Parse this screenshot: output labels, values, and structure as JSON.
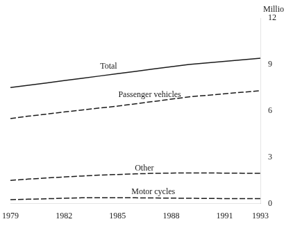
{
  "chart_data": {
    "type": "line",
    "ylabel": "Million",
    "x": [
      1979,
      1980,
      1981,
      1982,
      1983,
      1984,
      1985,
      1986,
      1987,
      1988,
      1989,
      1990,
      1991,
      1992,
      1993
    ],
    "series": [
      {
        "color": "#1a1a1a",
        "line_style": "solid",
        "values": [
          7.5,
          7.65,
          7.8,
          7.95,
          8.1,
          8.25,
          8.4,
          8.55,
          8.7,
          8.85,
          9.0,
          9.1,
          9.2,
          9.3,
          9.4
        ]
      },
      {
        "color": "#1a1a1a",
        "line_style": "dashed",
        "values": [
          5.5,
          5.65,
          5.78,
          5.92,
          6.05,
          6.18,
          6.3,
          6.45,
          6.6,
          6.75,
          6.9,
          7.0,
          7.1,
          7.2,
          7.3
        ]
      },
      {
        "color": "#1a1a1a",
        "line_style": "dashed",
        "values": [
          1.5,
          1.58,
          1.65,
          1.72,
          1.78,
          1.84,
          1.88,
          1.92,
          1.95,
          1.97,
          1.98,
          1.98,
          1.97,
          1.96,
          1.95
        ]
      },
      {
        "color": "#1a1a1a",
        "line_style": "dashed",
        "values": [
          0.25,
          0.28,
          0.31,
          0.34,
          0.37,
          0.38,
          0.38,
          0.37,
          0.36,
          0.35,
          0.34,
          0.33,
          0.32,
          0.32,
          0.32
        ]
      }
    ],
    "annotations": [
      {
        "text": "Total",
        "x": 1984.5,
        "y": 8.62
      },
      {
        "text": "Passenger vehicles",
        "x": 1986.8,
        "y": 6.75
      },
      {
        "text": "Other",
        "x": 1986.5,
        "y": 2.02
      },
      {
        "text": "Motor cycles",
        "x": 1987.0,
        "y": 0.48
      }
    ],
    "xlim": [
      1979,
      1993
    ],
    "xticks": [
      1979,
      1982,
      1985,
      1988,
      1991,
      1993
    ],
    "ylim": [
      0,
      12
    ],
    "yticks": [
      0,
      3,
      6,
      9,
      12
    ],
    "grid": false,
    "color": "#1a1a1a"
  }
}
